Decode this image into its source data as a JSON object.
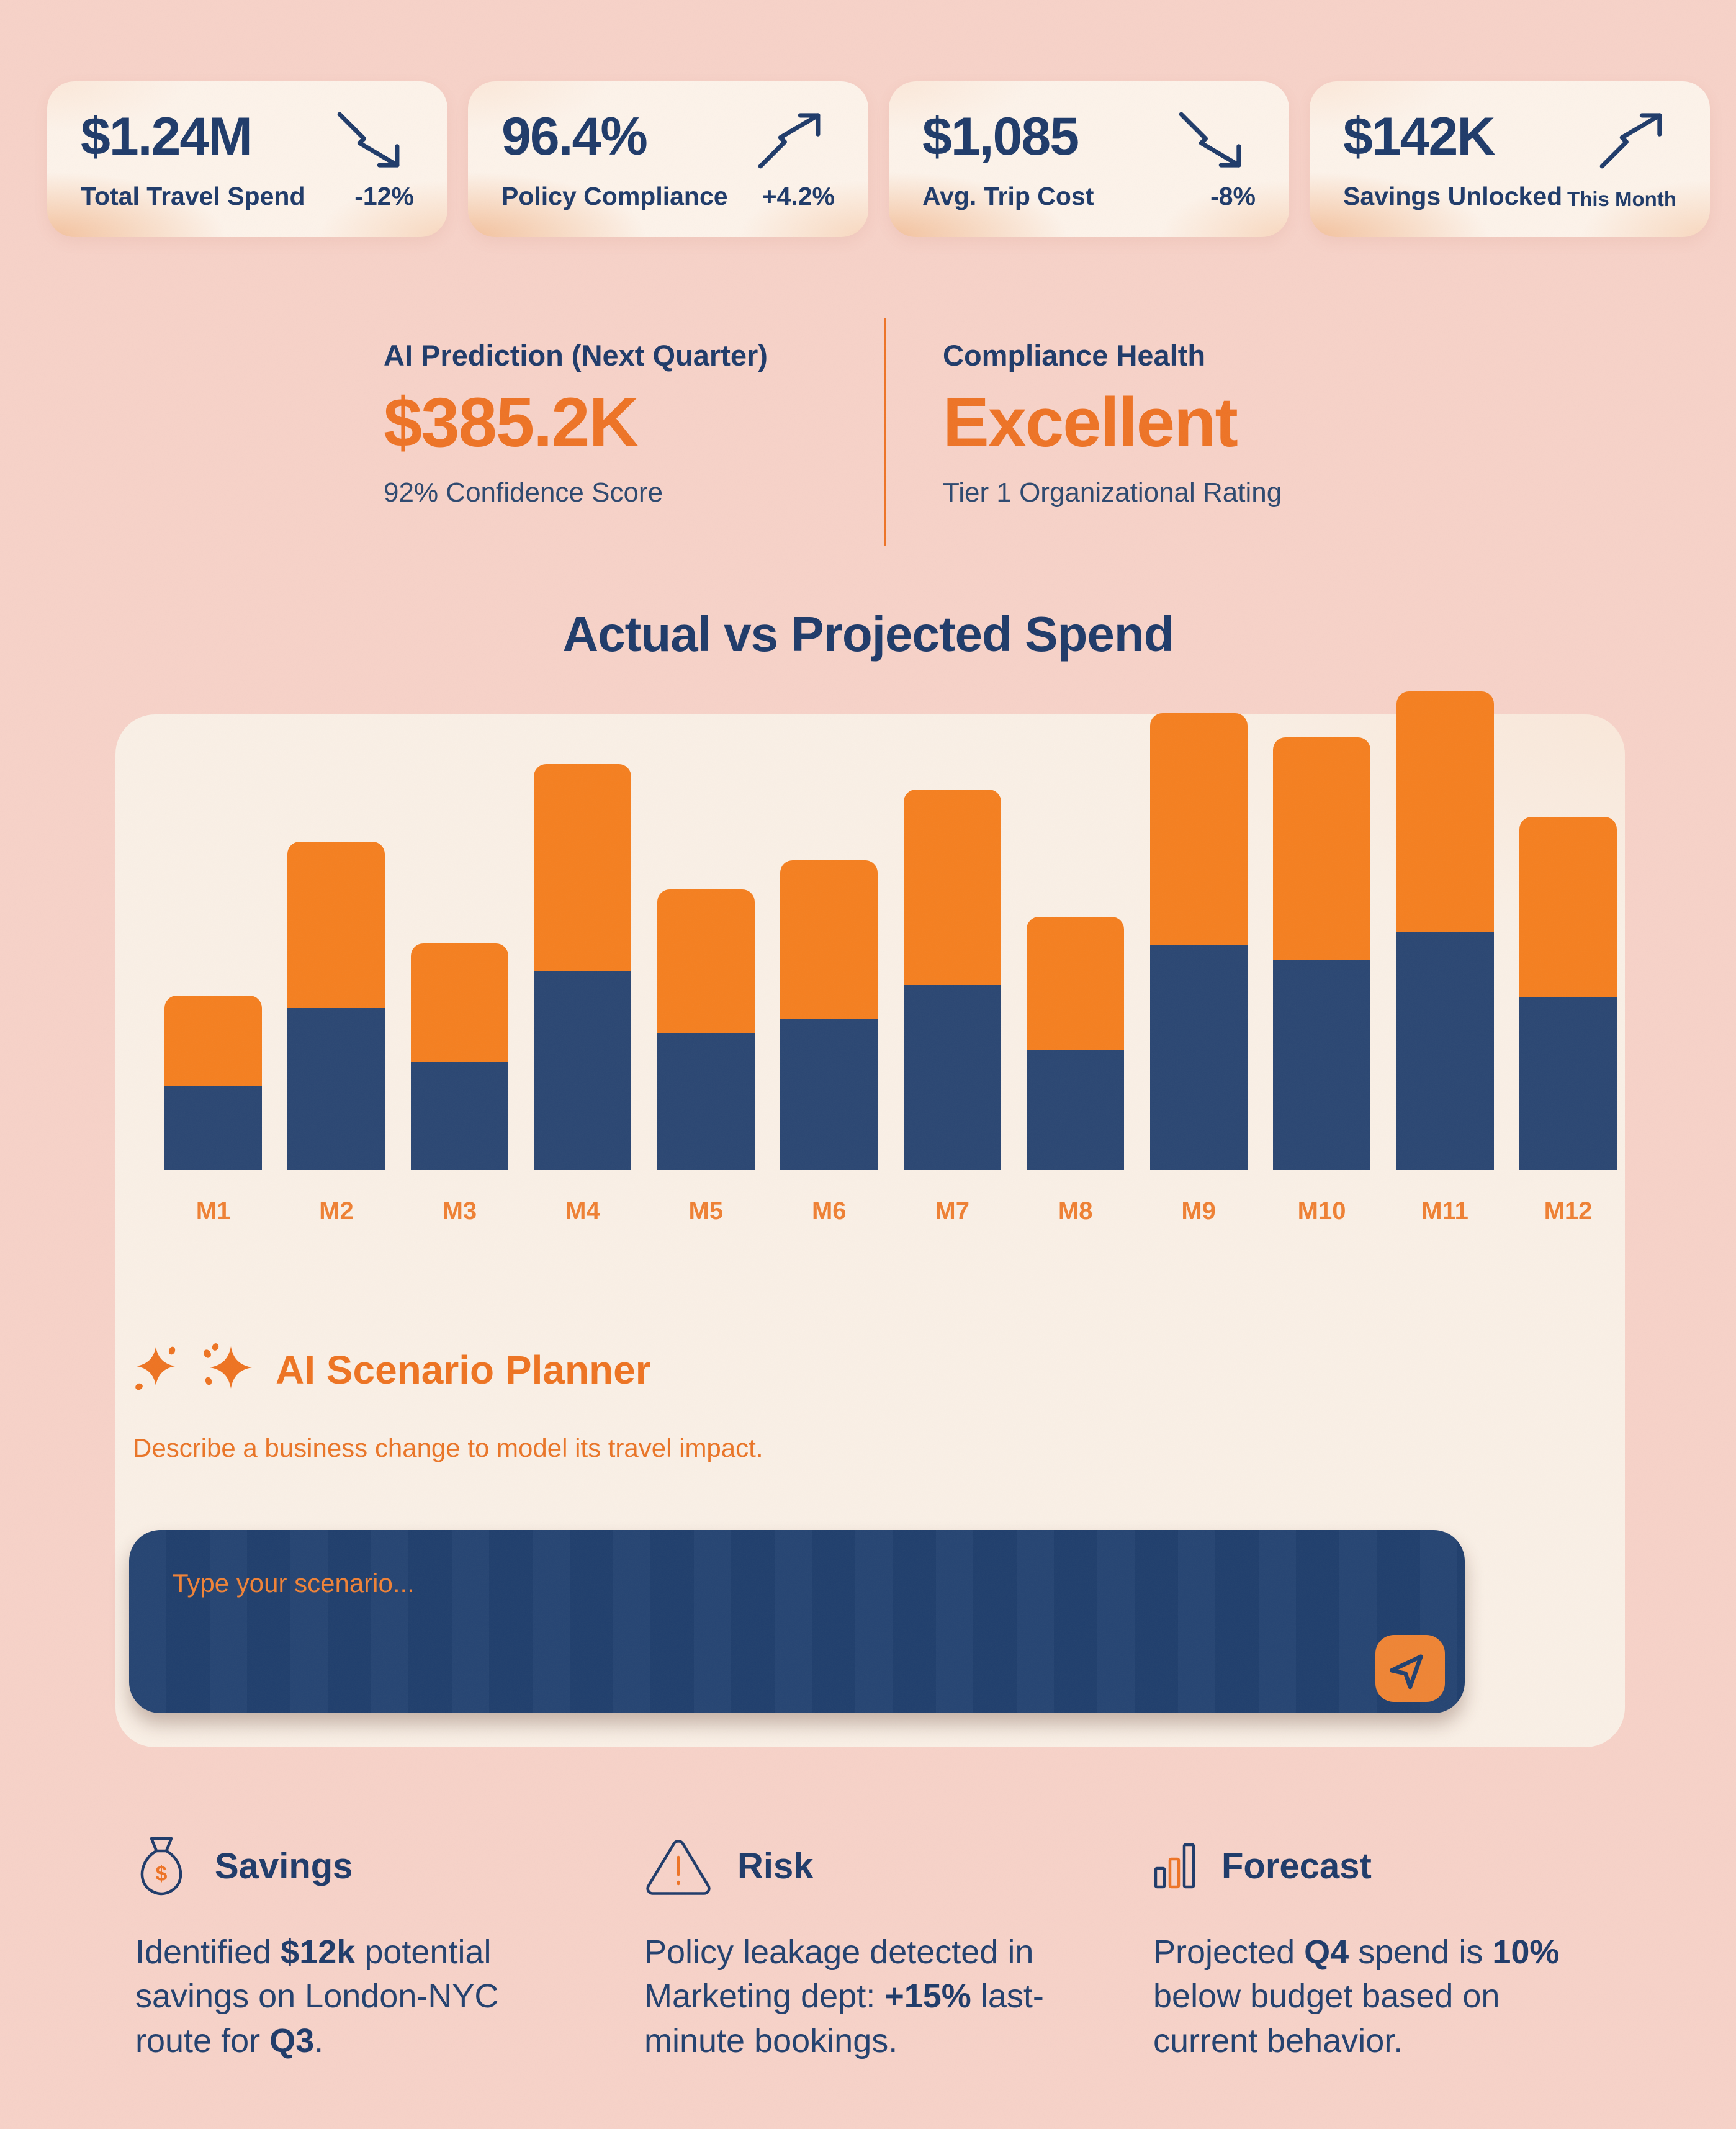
{
  "kpi_cards": [
    {
      "value": "$1.24M",
      "label": "Total Travel Spend",
      "delta": "-12%",
      "trend": "down"
    },
    {
      "value": "96.4%",
      "label": "Policy Compliance",
      "delta": "+4.2%",
      "trend": "up"
    },
    {
      "value": "$1,085",
      "label": "Avg. Trip Cost",
      "delta": "-8%",
      "trend": "down"
    },
    {
      "value": "$142K",
      "label": "Savings Unlocked",
      "delta": "This Month",
      "trend": "up"
    }
  ],
  "prediction": {
    "label": "AI Prediction (Next Quarter)",
    "value": "$385.2K",
    "subtext": "92% Confidence Score"
  },
  "compliance": {
    "label": "Compliance Health",
    "value": "Excellent",
    "subtext": "Tier 1 Organizational Rating"
  },
  "chart_data": {
    "type": "bar",
    "stacked": true,
    "title": "Actual vs Projected Spend",
    "categories": [
      "M1",
      "M2",
      "M3",
      "M4",
      "M5",
      "M6",
      "M7",
      "M8",
      "M9",
      "M10",
      "M11",
      "M12"
    ],
    "series": [
      {
        "name": "Actual",
        "color": "#2a4672",
        "values": [
          17.6,
          33.9,
          22.6,
          41.5,
          28.7,
          31.6,
          38.6,
          25.2,
          47.1,
          44.0,
          49.7,
          36.2
        ]
      },
      {
        "name": "Projected",
        "color": "#f57f1f",
        "values": [
          18.8,
          34.8,
          24.8,
          43.3,
          30.0,
          33.1,
          40.9,
          27.8,
          48.4,
          46.4,
          50.3,
          37.6
        ]
      }
    ],
    "units": "relative spend, tallest stacked bar = 100 (no y-axis shown in figure)",
    "xlabel": "",
    "ylabel": "",
    "y_axis_shown": false,
    "legend_shown": false,
    "grid": false,
    "label_color": "#ef8033"
  },
  "planner": {
    "title": "AI Scenario Planner",
    "description": "Describe a business change to model its travel impact.",
    "input_placeholder": "Type your scenario...",
    "input_value": ""
  },
  "insights": [
    {
      "icon": "money-bag-icon",
      "title": "Savings",
      "pre": "Identified ",
      "bold1": "$12k",
      "mid": " potential savings on London-NYC route for ",
      "bold2": "Q3",
      "post": "."
    },
    {
      "icon": "warning-triangle-icon",
      "title": "Risk",
      "pre": "Policy leakage detected in Marketing dept: ",
      "bold1": "+15%",
      "mid": " last-minute bookings.",
      "bold2": "",
      "post": ""
    },
    {
      "icon": "bar-chart-icon",
      "title": "Forecast",
      "pre": "Projected ",
      "bold1": "Q4",
      "mid": " spend is ",
      "bold2": "10%",
      "post": " below budget based on current behavior."
    }
  ],
  "colors": {
    "page_bg": "#f7d2c8",
    "kpi_card_bg": "#fdf3ea",
    "panel_bg": "#faf0e6",
    "navy_text": "#1e3a69",
    "navy_bar": "#2a4672",
    "orange_accent": "#ee7325",
    "orange_bar": "#f57f1f",
    "input_bg": "#20406f",
    "send_button_bg": "#ef8434"
  }
}
